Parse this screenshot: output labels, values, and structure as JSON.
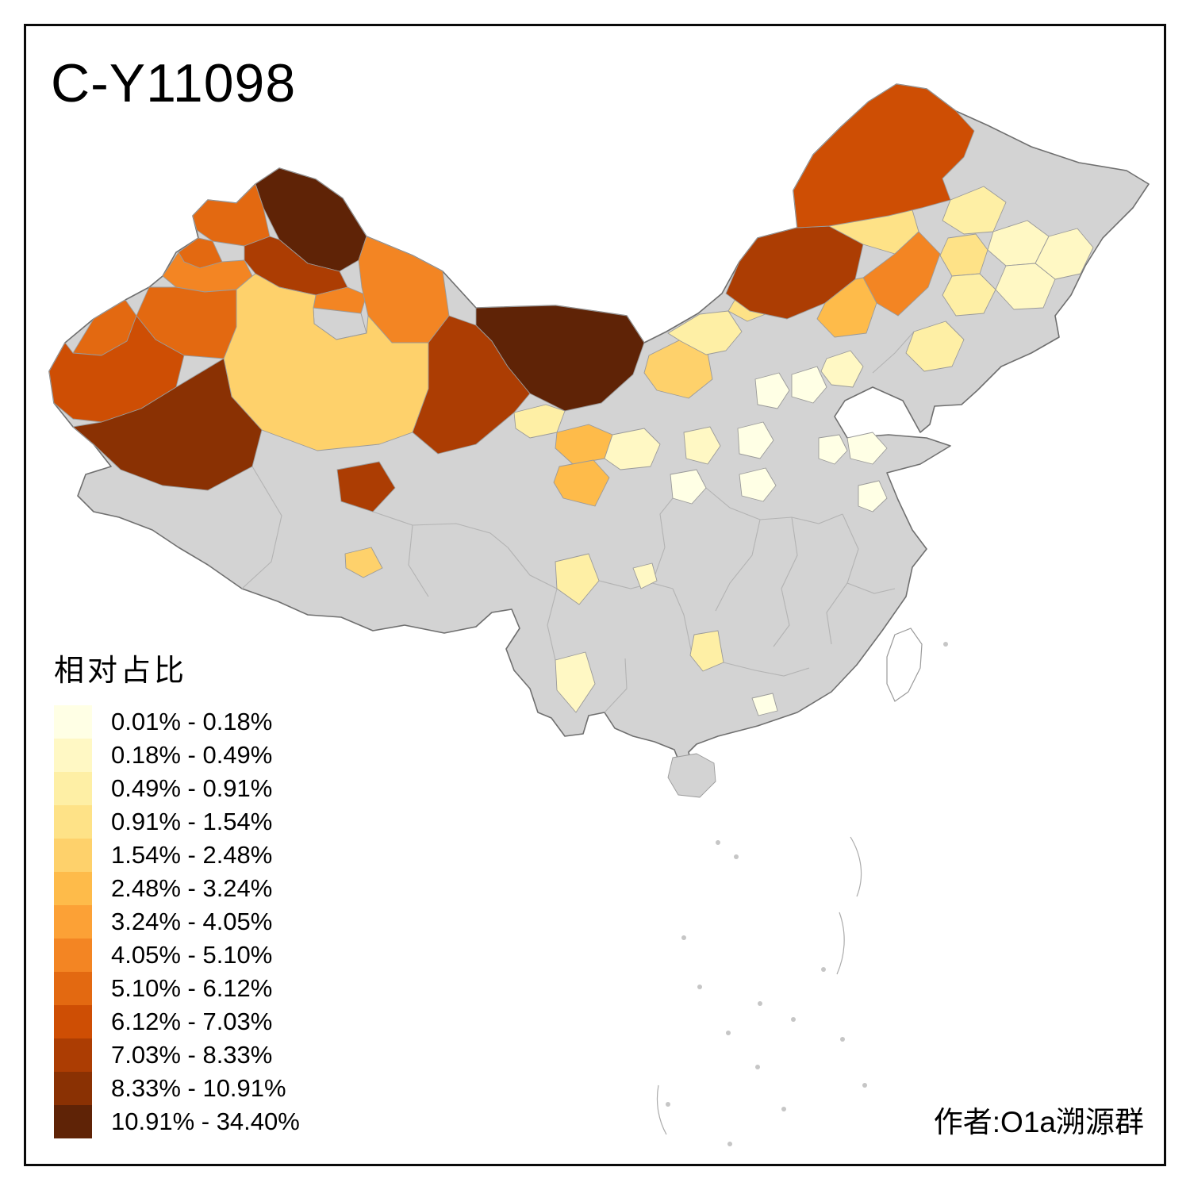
{
  "title": "C-Y11098",
  "attribution": "作者:O1a溯源群",
  "legend": {
    "title": "相对占比",
    "items": [
      {
        "label": "0.01% - 0.18%",
        "color": "#FFFFE5"
      },
      {
        "label": "0.18% - 0.49%",
        "color": "#FFF8C4"
      },
      {
        "label": "0.49% - 0.91%",
        "color": "#FEEFA5"
      },
      {
        "label": "0.91% - 1.54%",
        "color": "#FEE287"
      },
      {
        "label": "1.54% - 2.48%",
        "color": "#FED16B"
      },
      {
        "label": "2.48% - 3.24%",
        "color": "#FEBB4A"
      },
      {
        "label": "3.24% - 4.05%",
        "color": "#FCA136"
      },
      {
        "label": "4.05% - 5.10%",
        "color": "#F38523"
      },
      {
        "label": "5.10% - 6.12%",
        "color": "#E36911"
      },
      {
        "label": "6.12% - 7.03%",
        "color": "#CE4E04"
      },
      {
        "label": "7.03% - 8.33%",
        "color": "#AC3D03"
      },
      {
        "label": "8.33% - 10.91%",
        "color": "#8A3103"
      },
      {
        "label": "10.91% - 34.40%",
        "color": "#5F2306"
      }
    ]
  },
  "map": {
    "type": "choropleth",
    "na_color": "#D3D3D3",
    "sea_color": "#FFFFFF",
    "outline_color": "#6F6F6F",
    "regions": {
      "base": "na",
      "altay": 13,
      "tacheng": 9,
      "bole": 9,
      "ili": 8,
      "urumqi-changji": 11,
      "turpan": 8,
      "hami": 8,
      "xinjiang-gray-patch": "na",
      "bayingol": 5,
      "aksu": 9,
      "kizilsu": 9,
      "kashgar": 10,
      "hotan": 12,
      "jiuquan": 11,
      "haixi": 11,
      "alxa": 13,
      "zhangye": 3,
      "wuwei": 6,
      "lanzhou-east": 2,
      "gannan": 6,
      "ningxia": 5,
      "ordos": 3,
      "baotou": 4,
      "xilingol": 11,
      "hinggan": 4,
      "tongliao": 8,
      "chifeng": 6,
      "hulunbuir": 10,
      "heihe": 3,
      "suihua": 2,
      "harbin-east": 2,
      "songyuan": 4,
      "changchun": 3,
      "jilin-east": 2,
      "liaoning-west": 3,
      "beijing": 2,
      "hebei": 1,
      "shanxi-north": 1,
      "shanxi-south": 1,
      "shandong": 1,
      "hebei-south": 1,
      "shandong-west": 1,
      "henan": 1,
      "shaanxi-north": 2,
      "shaanxi-mid": 1,
      "garze": 3,
      "tibet-center": 5,
      "sichuan-south": 2,
      "yunnan-west": 2,
      "guizhou": 3,
      "guangxi": 1,
      "hainan": "na"
    }
  }
}
